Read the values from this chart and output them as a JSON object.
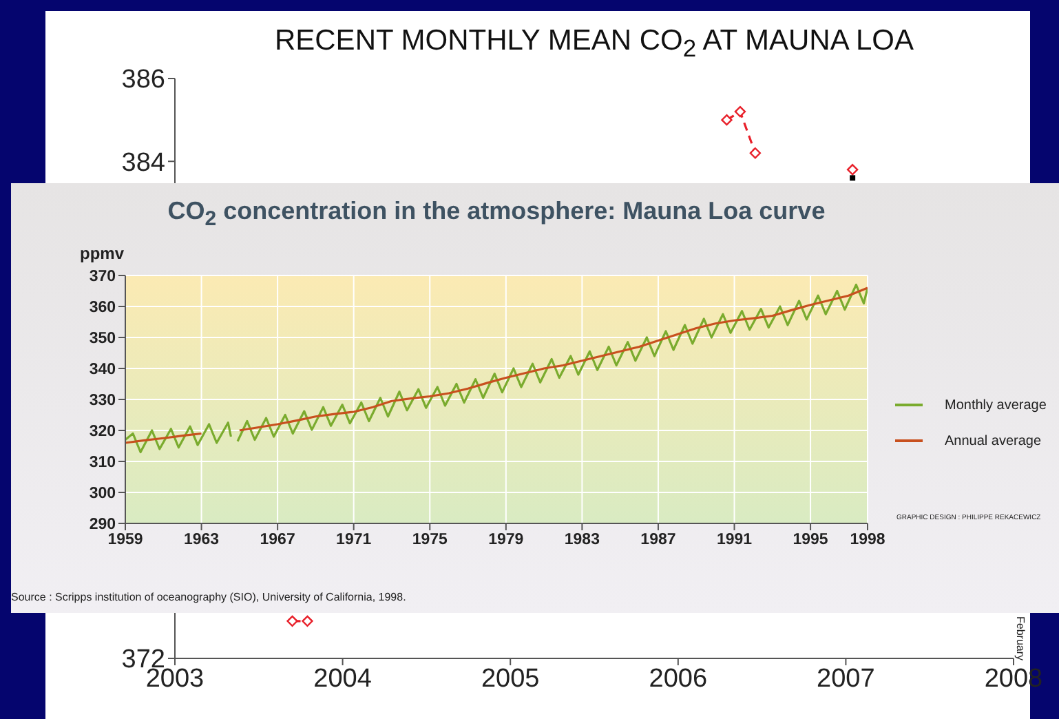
{
  "chart_data": [
    {
      "type": "line",
      "title": "RECENT MONTHLY MEAN CO$_{2}$ AT MAUNA LOA",
      "annotations": [
        "February"
      ],
      "xlim": [
        2003,
        2008
      ],
      "xticks": [
        2003,
        2004,
        2005,
        2006,
        2007,
        2008
      ],
      "ylim": [
        372,
        386
      ],
      "yticks": [
        372,
        384,
        386
      ],
      "grid": false,
      "legend": false,
      "series": [
        {
          "type": "line",
          "color": "#e8202a",
          "marker": "diamond",
          "line_style": "dashed",
          "x": [
            2003.7,
            2003.79,
            2005.0,
            2006.29,
            2006.37,
            2006.46,
            2006.8,
            2007.04
          ],
          "values": [
            372.9,
            372.9,
            null,
            385.0,
            385.2,
            384.2,
            null,
            383.8
          ]
        },
        {
          "type": "scatter",
          "color": "#000000",
          "marker": "square",
          "x": [
            2007.04
          ],
          "values": [
            383.6
          ]
        }
      ]
    },
    {
      "type": "line",
      "title": "CO$_{2}$ concentration in the atmosphere: Mauna Loa curve",
      "ylabel": "ppmv",
      "annotations": [
        "Source : Scripps institution of oceanography (SIO), University of California, 1998.",
        "GRAPHIC DESIGN : PHILIPPE REKACEWICZ"
      ],
      "xlim": [
        1959,
        1998
      ],
      "xticks": [
        1959,
        1963,
        1967,
        1971,
        1975,
        1979,
        1983,
        1987,
        1991,
        1995,
        1998
      ],
      "ylim": [
        290,
        370
      ],
      "yticks": [
        290,
        300,
        310,
        320,
        330,
        340,
        350,
        360,
        370
      ],
      "grid": true,
      "legend": "right",
      "series": [
        {
          "name": "Monthly average",
          "color": "#7aab2e",
          "x": [
            1959.0,
            1959.4,
            1959.8,
            1960.4,
            1960.8,
            1961.4,
            1961.8,
            1962.4,
            1962.8,
            1963.4,
            1963.8,
            1964.4,
            1964.55,
            1964.7,
            1964.9,
            1965.4,
            1965.8,
            1966.4,
            1966.8,
            1967.4,
            1967.8,
            1968.4,
            1968.8,
            1969.4,
            1969.8,
            1970.4,
            1970.8,
            1971.4,
            1971.8,
            1972.4,
            1972.8,
            1973.4,
            1973.8,
            1974.4,
            1974.8,
            1975.4,
            1975.8,
            1976.4,
            1976.8,
            1977.4,
            1977.8,
            1978.4,
            1978.8,
            1979.4,
            1979.8,
            1980.4,
            1980.8,
            1981.4,
            1981.8,
            1982.4,
            1982.8,
            1983.4,
            1983.8,
            1984.4,
            1984.8,
            1985.4,
            1985.8,
            1986.4,
            1986.8,
            1987.4,
            1987.8,
            1988.4,
            1988.8,
            1989.4,
            1989.8,
            1990.4,
            1990.8,
            1991.4,
            1991.8,
            1992.4,
            1992.8,
            1993.4,
            1993.8,
            1994.4,
            1994.8,
            1995.4,
            1995.8,
            1996.4,
            1996.8,
            1997.4,
            1997.8,
            1998.0
          ],
          "values": [
            317,
            319,
            313,
            320,
            314,
            320.5,
            314.5,
            321.3,
            315.3,
            322,
            316,
            322.5,
            318,
            null,
            316.5,
            323,
            317,
            324,
            318,
            325,
            319,
            326.2,
            320.2,
            327.5,
            321.5,
            328.3,
            322.3,
            329,
            323,
            330.5,
            324.5,
            332.5,
            326.5,
            333.3,
            327.3,
            334,
            328,
            335,
            329,
            336.5,
            330.5,
            338.3,
            332.3,
            340,
            334,
            341.5,
            335.5,
            343,
            337,
            344,
            338,
            345.5,
            339.5,
            347,
            341,
            348.5,
            342.5,
            350,
            344,
            352,
            346,
            354,
            348,
            356,
            350,
            357.5,
            351.5,
            358.5,
            352.5,
            359.2,
            353.2,
            360,
            354,
            361.8,
            355.8,
            363.5,
            357.5,
            365,
            359,
            367,
            361,
            366
          ]
        },
        {
          "name": "Annual average",
          "color": "#c8501e",
          "x": [
            1959,
            1960,
            1961,
            1962,
            1963,
            1964,
            1965,
            1966,
            1967,
            1968,
            1969,
            1970,
            1971,
            1972,
            1973,
            1974,
            1975,
            1976,
            1977,
            1978,
            1979,
            1980,
            1981,
            1982,
            1983,
            1984,
            1985,
            1986,
            1987,
            1988,
            1989,
            1990,
            1991,
            1992,
            1993,
            1994,
            1995,
            1996,
            1997,
            1998
          ],
          "values": [
            316,
            316.8,
            317.5,
            318.3,
            319,
            null,
            320,
            321,
            322,
            323.2,
            324.5,
            325.3,
            326,
            327.5,
            329.5,
            330.3,
            331,
            332,
            333.5,
            335.3,
            337,
            338.5,
            340,
            341,
            342.5,
            344,
            345.5,
            347,
            349,
            351,
            353,
            354.5,
            355.5,
            356.2,
            357,
            358.8,
            360.5,
            362,
            363.5,
            366
          ]
        }
      ]
    }
  ]
}
